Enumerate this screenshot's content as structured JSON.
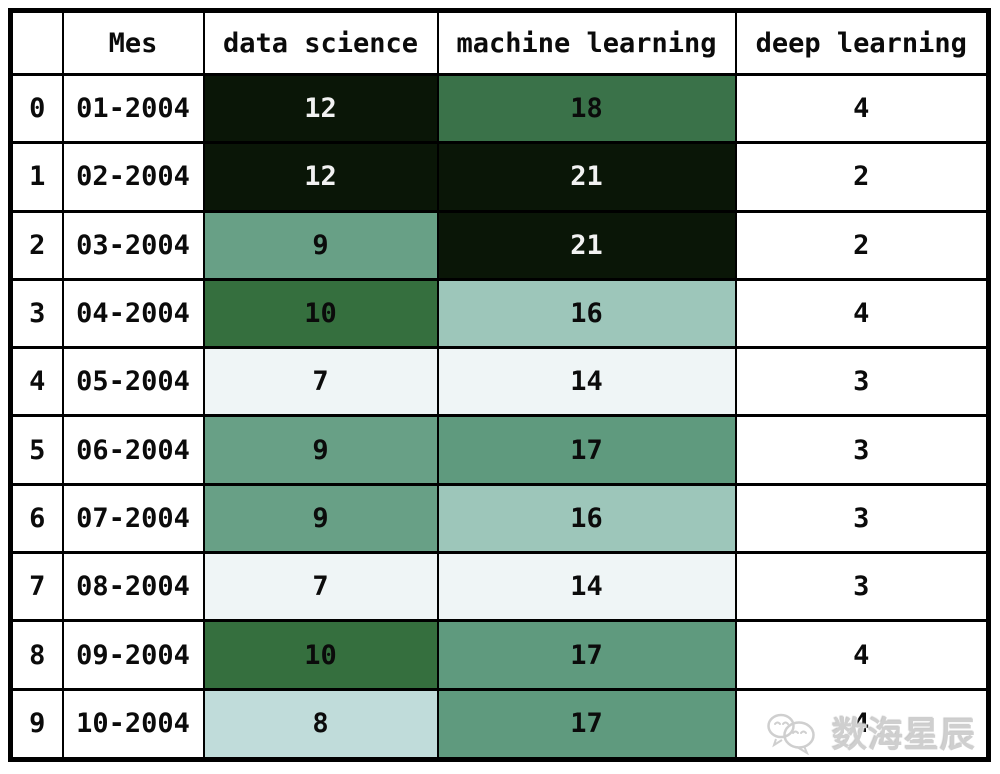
{
  "table": {
    "columns": [
      "",
      "Mes",
      "data science",
      "machine learning",
      "deep learning"
    ],
    "value_keys": [
      "data-science",
      "machine-learning",
      "deep-learning"
    ],
    "rows": [
      {
        "index": "0",
        "mes": "01-2004",
        "values": [
          {
            "v": "12",
            "bg": "#0a1607",
            "fg": "#f2f2f2"
          },
          {
            "v": "18",
            "bg": "#3a7249",
            "fg": "#0b0b0b"
          },
          {
            "v": "4",
            "bg": "#ffffff",
            "fg": "#0b0b0b"
          }
        ]
      },
      {
        "index": "1",
        "mes": "02-2004",
        "values": [
          {
            "v": "12",
            "bg": "#0a1607",
            "fg": "#f2f2f2"
          },
          {
            "v": "21",
            "bg": "#0a1607",
            "fg": "#f2f2f2"
          },
          {
            "v": "2",
            "bg": "#ffffff",
            "fg": "#0b0b0b"
          }
        ]
      },
      {
        "index": "2",
        "mes": "03-2004",
        "values": [
          {
            "v": "9",
            "bg": "#68a086",
            "fg": "#0b0b0b"
          },
          {
            "v": "21",
            "bg": "#0a1607",
            "fg": "#f2f2f2"
          },
          {
            "v": "2",
            "bg": "#ffffff",
            "fg": "#0b0b0b"
          }
        ]
      },
      {
        "index": "3",
        "mes": "04-2004",
        "values": [
          {
            "v": "10",
            "bg": "#356f3e",
            "fg": "#0b0b0b"
          },
          {
            "v": "16",
            "bg": "#9dc6ba",
            "fg": "#0b0b0b"
          },
          {
            "v": "4",
            "bg": "#ffffff",
            "fg": "#0b0b0b"
          }
        ]
      },
      {
        "index": "4",
        "mes": "05-2004",
        "values": [
          {
            "v": "7",
            "bg": "#eff5f6",
            "fg": "#0b0b0b"
          },
          {
            "v": "14",
            "bg": "#eff5f6",
            "fg": "#0b0b0b"
          },
          {
            "v": "3",
            "bg": "#ffffff",
            "fg": "#0b0b0b"
          }
        ]
      },
      {
        "index": "5",
        "mes": "06-2004",
        "values": [
          {
            "v": "9",
            "bg": "#68a086",
            "fg": "#0b0b0b"
          },
          {
            "v": "17",
            "bg": "#5f9a7e",
            "fg": "#0b0b0b"
          },
          {
            "v": "3",
            "bg": "#ffffff",
            "fg": "#0b0b0b"
          }
        ]
      },
      {
        "index": "6",
        "mes": "07-2004",
        "values": [
          {
            "v": "9",
            "bg": "#68a086",
            "fg": "#0b0b0b"
          },
          {
            "v": "16",
            "bg": "#9dc6ba",
            "fg": "#0b0b0b"
          },
          {
            "v": "3",
            "bg": "#ffffff",
            "fg": "#0b0b0b"
          }
        ]
      },
      {
        "index": "7",
        "mes": "08-2004",
        "values": [
          {
            "v": "7",
            "bg": "#eff5f6",
            "fg": "#0b0b0b"
          },
          {
            "v": "14",
            "bg": "#eff5f6",
            "fg": "#0b0b0b"
          },
          {
            "v": "3",
            "bg": "#ffffff",
            "fg": "#0b0b0b"
          }
        ]
      },
      {
        "index": "8",
        "mes": "09-2004",
        "values": [
          {
            "v": "10",
            "bg": "#356f3e",
            "fg": "#0b0b0b"
          },
          {
            "v": "17",
            "bg": "#5f9a7e",
            "fg": "#0b0b0b"
          },
          {
            "v": "4",
            "bg": "#ffffff",
            "fg": "#0b0b0b"
          }
        ]
      },
      {
        "index": "9",
        "mes": "10-2004",
        "values": [
          {
            "v": "8",
            "bg": "#c0dcda",
            "fg": "#0b0b0b"
          },
          {
            "v": "17",
            "bg": "#5f9a7e",
            "fg": "#0b0b0b"
          },
          {
            "v": "4",
            "bg": "#ffffff",
            "fg": "#0b0b0b"
          }
        ]
      }
    ]
  },
  "chart_data": {
    "type": "heatmap",
    "title": "",
    "columns": [
      "Mes",
      "data science",
      "machine learning",
      "deep learning"
    ],
    "index": [
      0,
      1,
      2,
      3,
      4,
      5,
      6,
      7,
      8,
      9
    ],
    "categories": [
      "01-2004",
      "02-2004",
      "03-2004",
      "04-2004",
      "05-2004",
      "06-2004",
      "07-2004",
      "08-2004",
      "09-2004",
      "10-2004"
    ],
    "series": [
      {
        "name": "data science",
        "values": [
          12,
          12,
          9,
          10,
          7,
          9,
          9,
          7,
          10,
          8
        ]
      },
      {
        "name": "machine learning",
        "values": [
          18,
          21,
          21,
          16,
          14,
          17,
          16,
          14,
          17,
          17
        ]
      },
      {
        "name": "deep learning",
        "values": [
          4,
          2,
          2,
          4,
          3,
          3,
          3,
          3,
          4,
          4
        ]
      }
    ],
    "layout_hints": "styled dataframe table; green background gradient applied per-column to 'data science' and 'machine learning' (dark = high); 'deep learning' uncolored; thick black grid borders"
  },
  "watermark": {
    "text": "数海星辰",
    "color": "#cfcfcf",
    "icon": "wechat-chat-bubbles-icon"
  },
  "colors": {
    "border": "#000000",
    "page_bg": "#ffffff",
    "header_bg": "#ffffff",
    "gradient_dark": "#0a1607",
    "gradient_light": "#eff5f6"
  }
}
